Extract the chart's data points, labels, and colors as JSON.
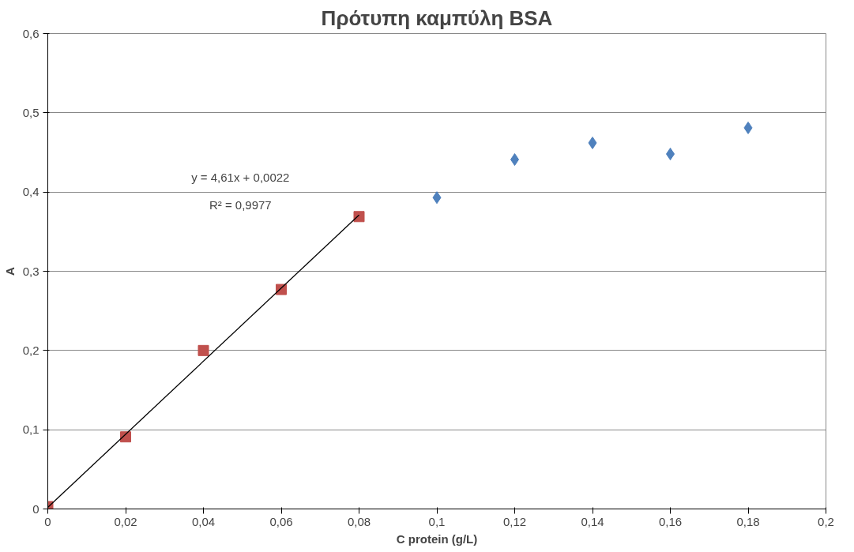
{
  "chart_data": {
    "type": "scatter",
    "title": "Πρότυπη καμπύλη BSA",
    "xlabel": "C protein (g/L)",
    "ylabel": "A",
    "xlim": [
      0,
      0.2
    ],
    "ylim": [
      0,
      0.6
    ],
    "xticks": [
      0,
      {
        "value": 0.02,
        "label": "0,02"
      },
      {
        "value": 0.04,
        "label": "0,04"
      },
      {
        "value": 0.06,
        "label": "0,06"
      },
      {
        "value": 0.08,
        "label": "0,08"
      },
      {
        "value": 0.1,
        "label": "0,1"
      },
      {
        "value": 0.12,
        "label": "0,12"
      },
      {
        "value": 0.14,
        "label": "0,14"
      },
      {
        "value": 0.16,
        "label": "0,16"
      },
      {
        "value": 0.18,
        "label": "0,18"
      },
      {
        "value": 0.2,
        "label": "0,2"
      }
    ],
    "yticks": [
      0,
      {
        "value": 0.1,
        "label": "0,1"
      },
      {
        "value": 0.2,
        "label": "0,2"
      },
      {
        "value": 0.3,
        "label": "0,3"
      },
      {
        "value": 0.4,
        "label": "0,4"
      },
      {
        "value": 0.5,
        "label": "0,5"
      },
      {
        "value": 0.6,
        "label": "0,6"
      }
    ],
    "grid": "y",
    "series": [
      {
        "marker": "diamond",
        "color": "#4f81bd",
        "x": [
          0.1,
          0.12,
          0.14,
          0.16,
          0.18
        ],
        "values": [
          0.393,
          0.441,
          0.462,
          0.448,
          0.481
        ]
      },
      {
        "marker": "square",
        "color": "#c0504d",
        "x": [
          0,
          0.02,
          0.04,
          0.06,
          0.08
        ],
        "values": [
          0.003,
          0.091,
          0.2,
          0.277,
          0.369
        ]
      },
      {
        "type": "line",
        "marker": "none",
        "line_style": "solid",
        "color": "#000000",
        "x": [
          0,
          0.08
        ],
        "values": [
          0.002,
          0.371
        ]
      }
    ],
    "annotations": [
      "y = 4,61x + 0,0022",
      "R² = 0,9977"
    ]
  }
}
